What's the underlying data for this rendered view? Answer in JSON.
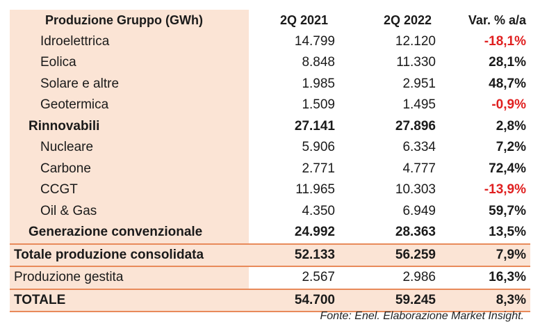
{
  "header": {
    "col0": "Produzione Gruppo (GWh)",
    "col1": "2Q 2021",
    "col2": "2Q 2022",
    "col3": "Var. % a/a"
  },
  "rows": [
    {
      "label": "Idroelettrica",
      "v1": "14.799",
      "v2": "12.120",
      "var": "-18,1%"
    },
    {
      "label": "Eolica",
      "v1": "8.848",
      "v2": "11.330",
      "var": "28,1%"
    },
    {
      "label": "Solare e altre",
      "v1": "1.985",
      "v2": "2.951",
      "var": "48,7%"
    },
    {
      "label": "Geotermica",
      "v1": "1.509",
      "v2": "1.495",
      "var": "-0,9%"
    },
    {
      "label": "Rinnovabili",
      "v1": "27.141",
      "v2": "27.896",
      "var": "2,8%"
    },
    {
      "label": "Nucleare",
      "v1": "5.906",
      "v2": "6.334",
      "var": "7,2%"
    },
    {
      "label": "Carbone",
      "v1": "2.771",
      "v2": "4.777",
      "var": "72,4%"
    },
    {
      "label": "CCGT",
      "v1": "11.965",
      "v2": "10.303",
      "var": "-13,9%"
    },
    {
      "label": "Oil & Gas",
      "v1": "4.350",
      "v2": "6.949",
      "var": "59,7%"
    },
    {
      "label": "Generazione convenzionale",
      "v1": "24.992",
      "v2": "28.363",
      "var": "13,5%"
    },
    {
      "label": "Totale produzione consolidata",
      "v1": "52.133",
      "v2": "56.259",
      "var": "7,9%"
    },
    {
      "label": "Produzione gestita",
      "v1": "2.567",
      "v2": "2.986",
      "var": "16,3%"
    },
    {
      "label": "TOTALE",
      "v1": "54.700",
      "v2": "59.245",
      "var": "8,3%"
    }
  ],
  "source": "Fonte: Enel. Elaborazione Market Insight."
}
